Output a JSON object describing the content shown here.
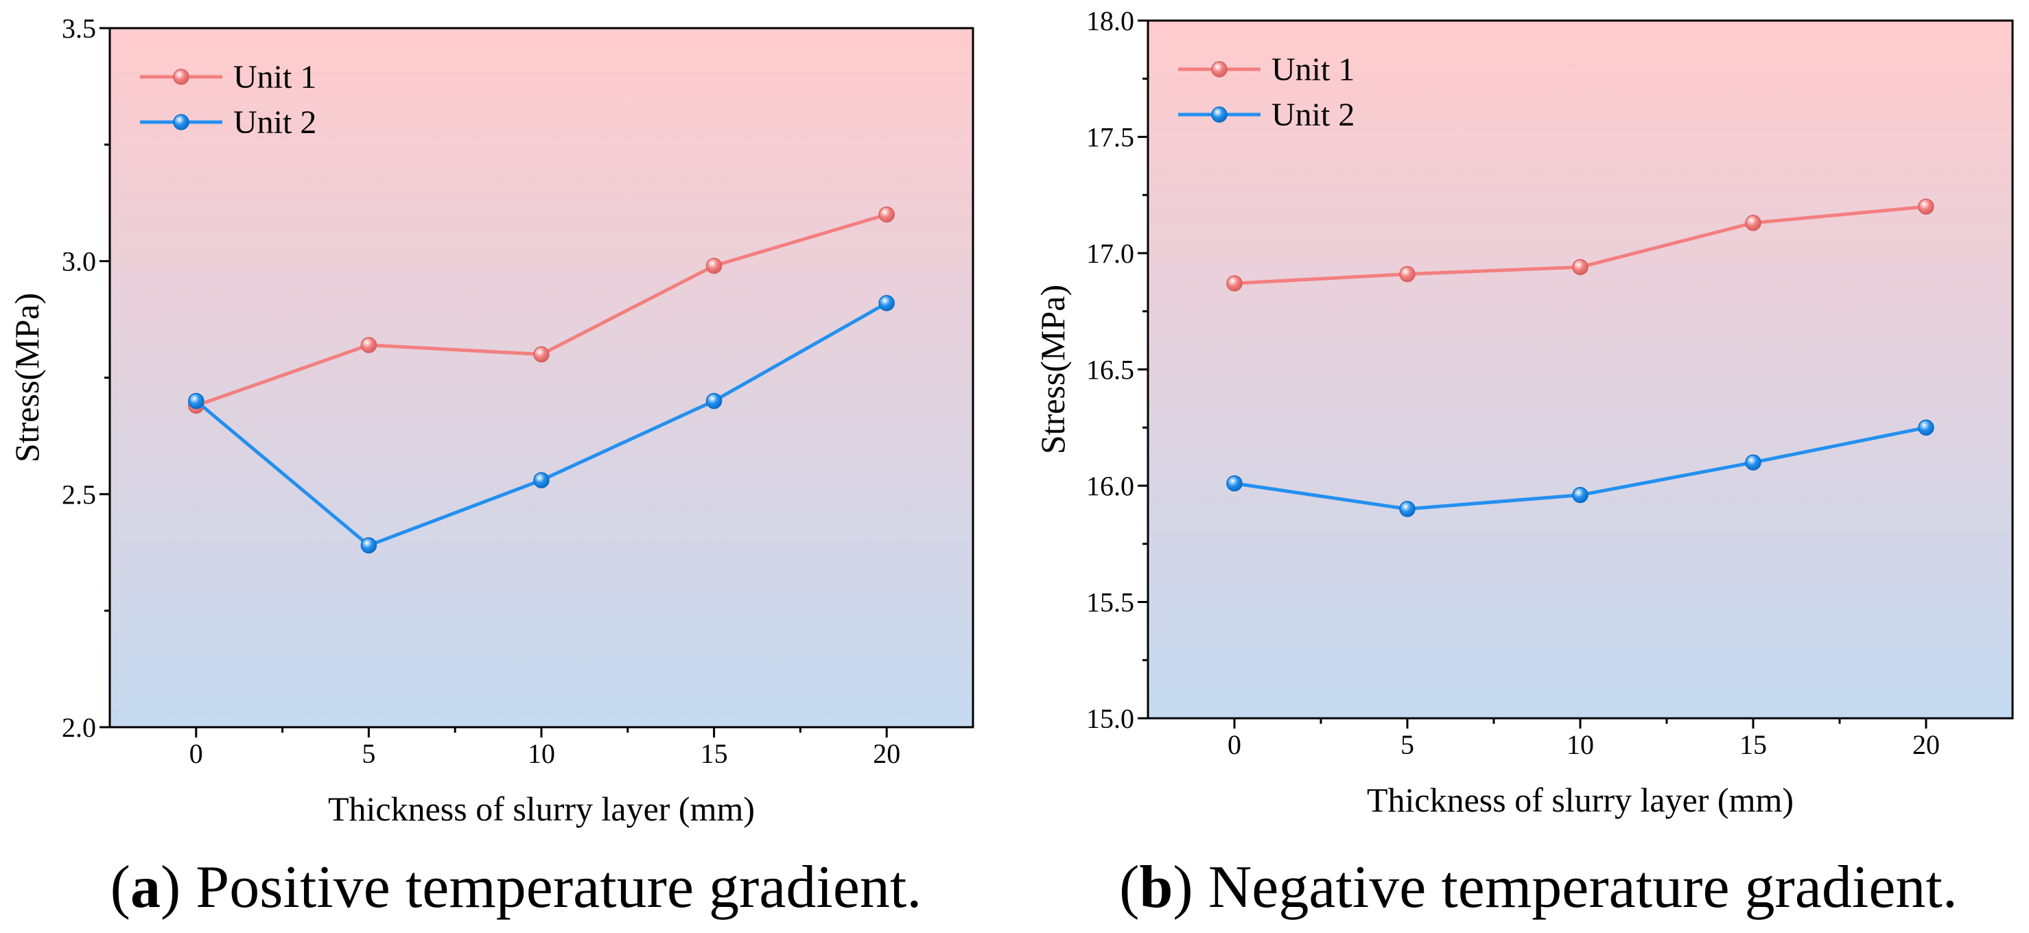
{
  "colors": {
    "page_background": "#ffffff",
    "plot_background_top": "#ffcbcd",
    "plot_background_bottom": "#c5daf0",
    "axis": "#000000"
  },
  "chart_data": [
    {
      "type": "line",
      "xlabel": "Thickness of slurry layer (mm)",
      "ylabel": "Stress(MPa)",
      "x": [
        0,
        5,
        10,
        15,
        20
      ],
      "xlim": [
        -2.5,
        22.5
      ],
      "xticks": [
        0,
        5,
        10,
        15,
        20
      ],
      "xtick_labels": [
        "0",
        "5",
        "10",
        "15",
        "20"
      ],
      "xminor_step": 2.5,
      "ylim": [
        2.0,
        3.5
      ],
      "yticks": [
        2.0,
        2.5,
        3.0,
        3.5
      ],
      "ytick_labels": [
        "2.0",
        "2.5",
        "3.0",
        "3.5"
      ],
      "yminor_step": 0.25,
      "grid": false,
      "legend": "top-left",
      "series": [
        {
          "name": "Unit 1",
          "color": "#f37f7f",
          "marker_edge": "#d65f5f",
          "values": [
            2.69,
            2.82,
            2.8,
            2.99,
            3.1
          ]
        },
        {
          "name": "Unit 2",
          "color": "#2390ef",
          "marker_edge": "#0b6bc6",
          "values": [
            2.7,
            2.39,
            2.53,
            2.7,
            2.91
          ]
        }
      ],
      "caption": {
        "open": "(",
        "label": "a",
        "close": ")",
        "text": "Positive temperature gradient."
      }
    },
    {
      "type": "line",
      "xlabel": "Thickness of slurry layer (mm)",
      "ylabel": "Stress(MPa)",
      "x": [
        0,
        5,
        10,
        15,
        20
      ],
      "xlim": [
        -2.5,
        22.5
      ],
      "xticks": [
        0,
        5,
        10,
        15,
        20
      ],
      "xtick_labels": [
        "0",
        "5",
        "10",
        "15",
        "20"
      ],
      "xminor_step": 2.5,
      "ylim": [
        15.0,
        18.0
      ],
      "yticks": [
        15.0,
        15.5,
        16.0,
        16.5,
        17.0,
        17.5,
        18.0
      ],
      "ytick_labels": [
        "15.0",
        "15.5",
        "16.0",
        "16.5",
        "17.0",
        "17.5",
        "18.0"
      ],
      "yminor_step": 0.25,
      "grid": false,
      "legend": "top-left",
      "series": [
        {
          "name": "Unit 1",
          "color": "#f37f7f",
          "marker_edge": "#d65f5f",
          "values": [
            16.87,
            16.91,
            16.94,
            17.13,
            17.2
          ]
        },
        {
          "name": "Unit 2",
          "color": "#2390ef",
          "marker_edge": "#0b6bc6",
          "values": [
            16.01,
            15.9,
            15.96,
            16.1,
            16.25
          ]
        }
      ],
      "caption": {
        "open": "(",
        "label": "b",
        "close": ")",
        "text": "Negative temperature gradient."
      }
    }
  ]
}
